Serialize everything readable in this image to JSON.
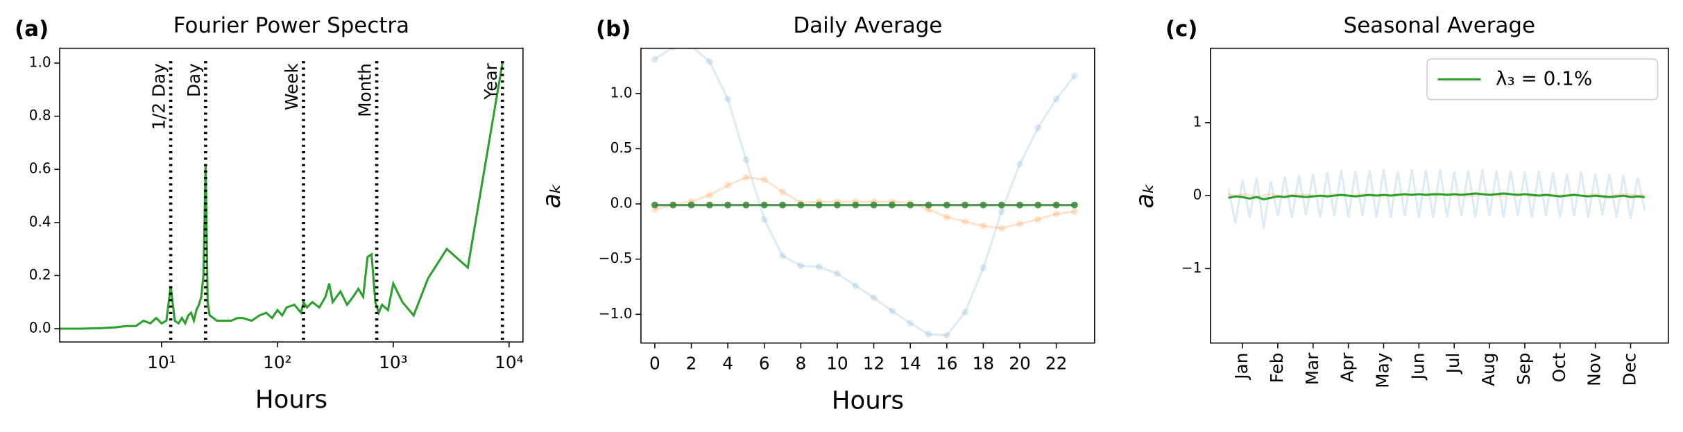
{
  "chart_data": [
    {
      "type": "line",
      "panel_label": "(a)",
      "title": "Fourier Power Spectra",
      "xlabel": "Hours",
      "xscale": "log",
      "xlim": [
        1.32,
        13180
      ],
      "ylim": [
        -0.05,
        1.056
      ],
      "xticks": [
        {
          "value": 10,
          "label": "10¹"
        },
        {
          "value": 100,
          "label": "10²"
        },
        {
          "value": 1000,
          "label": "10³"
        },
        {
          "value": 10000,
          "label": "10⁴"
        }
      ],
      "yticks": [
        {
          "value": 0,
          "label": "0.0"
        },
        0.2,
        0.4,
        0.6,
        0.8,
        {
          "value": 1,
          "label": "1.0"
        }
      ],
      "x": [
        1.3,
        2,
        3,
        4,
        5,
        6,
        7,
        8,
        9,
        10,
        11,
        12,
        13,
        14,
        15,
        16,
        17,
        18,
        19,
        20,
        21,
        22,
        23,
        24,
        25,
        26,
        28,
        30,
        35,
        40,
        45,
        50,
        60,
        70,
        80,
        90,
        100,
        110,
        120,
        140,
        160,
        168,
        180,
        200,
        230,
        260,
        280,
        300,
        350,
        400,
        450,
        500,
        550,
        600,
        650,
        700,
        750,
        800,
        900,
        1000,
        1200,
        1500,
        2000,
        2900,
        4400,
        8760
      ],
      "series": [
        {
          "color": "#2ca02c",
          "opacity": 1,
          "marker": false,
          "values": [
            0,
            0,
            0.002,
            0.005,
            0.01,
            0.01,
            0.03,
            0.02,
            0.04,
            0.02,
            0.03,
            0.16,
            0.03,
            0.02,
            0.04,
            0.02,
            0.05,
            0.06,
            0.03,
            0.07,
            0.09,
            0.12,
            0.2,
            0.62,
            0.1,
            0.05,
            0.04,
            0.03,
            0.03,
            0.03,
            0.04,
            0.04,
            0.03,
            0.05,
            0.06,
            0.04,
            0.07,
            0.05,
            0.08,
            0.09,
            0.06,
            0.1,
            0.08,
            0.1,
            0.08,
            0.12,
            0.17,
            0.1,
            0.14,
            0.09,
            0.12,
            0.15,
            0.12,
            0.27,
            0.28,
            0.1,
            0.06,
            0.09,
            0.07,
            0.17,
            0.1,
            0.05,
            0.19,
            0.3,
            0.23,
            1.0
          ]
        }
      ],
      "vlines": [
        {
          "x": 12,
          "label": "1/2 Day"
        },
        {
          "x": 24,
          "label": "Day"
        },
        {
          "x": 168,
          "label": "Week"
        },
        {
          "x": 720,
          "label": "Month"
        },
        {
          "x": 8760,
          "label": "Year"
        }
      ]
    },
    {
      "type": "line",
      "panel_label": "(b)",
      "title": "Daily Average",
      "xlabel": "Hours",
      "ylabel": "aₖ",
      "xlim": [
        -0.76,
        24.1
      ],
      "ylim": [
        -1.26,
        1.41
      ],
      "xticks": [
        0,
        2,
        4,
        6,
        8,
        10,
        12,
        14,
        16,
        18,
        20,
        22
      ],
      "yticks": [
        {
          "value": -1,
          "label": "−1.0"
        },
        {
          "value": -0.5,
          "label": "−0.5"
        },
        {
          "value": 0,
          "label": "0.0"
        },
        0.5,
        {
          "value": 1,
          "label": "1.0"
        }
      ],
      "x": [
        0,
        1,
        2,
        3,
        4,
        5,
        6,
        7,
        8,
        9,
        10,
        11,
        12,
        13,
        14,
        15,
        16,
        17,
        18,
        19,
        20,
        21,
        22,
        23
      ],
      "series": [
        {
          "color": "#1f77b4",
          "opacity": 0.15,
          "marker": true,
          "values": [
            1.31,
            1.42,
            1.43,
            1.29,
            0.95,
            0.4,
            -0.14,
            -0.47,
            -0.56,
            -0.57,
            -0.63,
            -0.74,
            -0.85,
            -0.97,
            -1.08,
            -1.18,
            -1.19,
            -0.98,
            -0.58,
            -0.07,
            0.36,
            0.69,
            0.95,
            1.16
          ]
        },
        {
          "color": "#ff7f0e",
          "opacity": 0.2,
          "marker": true,
          "values": [
            -0.05,
            -0.01,
            0.02,
            0.08,
            0.17,
            0.24,
            0.22,
            0.11,
            0.01,
            0.02,
            0.02,
            0.02,
            0.02,
            0.02,
            0.01,
            -0.05,
            -0.12,
            -0.16,
            -0.2,
            -0.22,
            -0.18,
            -0.14,
            -0.09,
            -0.07
          ]
        },
        {
          "color": "#3d8b3d",
          "opacity": 0.9,
          "marker": true,
          "values": [
            -0.01,
            -0.01,
            -0.01,
            -0.01,
            -0.01,
            -0.01,
            -0.01,
            -0.01,
            -0.01,
            -0.01,
            -0.01,
            -0.01,
            -0.01,
            -0.01,
            -0.01,
            -0.01,
            -0.01,
            -0.01,
            -0.01,
            -0.01,
            -0.01,
            -0.01,
            -0.01,
            -0.01
          ]
        }
      ]
    },
    {
      "type": "line",
      "panel_label": "(c)",
      "title": "Seasonal Average",
      "ylabel": "aₖ",
      "xlim": [
        -0.91,
        12.07
      ],
      "ylim": [
        -2.02,
        2.02
      ],
      "xtick_rotation": 90,
      "legend": "upper right",
      "xticks": [
        {
          "value": 0,
          "label": "Jan"
        },
        {
          "value": 1,
          "label": "Feb"
        },
        {
          "value": 2,
          "label": "Mar"
        },
        {
          "value": 3,
          "label": "Apr"
        },
        {
          "value": 4,
          "label": "May"
        },
        {
          "value": 5,
          "label": "Jun"
        },
        {
          "value": 6,
          "label": "Jul"
        },
        {
          "value": 7,
          "label": "Aug"
        },
        {
          "value": 8,
          "label": "Sep"
        },
        {
          "value": 9,
          "label": "Oct"
        },
        {
          "value": 10,
          "label": "Nov"
        },
        {
          "value": 11,
          "label": "Dec"
        }
      ],
      "yticks": [
        {
          "value": -1,
          "label": "−1"
        },
        0,
        1
      ],
      "x": [
        -0.4,
        -0.2,
        0,
        0.2,
        0.4,
        0.6,
        0.8,
        1,
        1.2,
        1.4,
        1.6,
        1.8,
        2,
        2.2,
        2.4,
        2.6,
        2.8,
        3,
        3.2,
        3.4,
        3.6,
        3.8,
        4,
        4.2,
        4.4,
        4.6,
        4.8,
        5,
        5.2,
        5.4,
        5.6,
        5.8,
        6,
        6.2,
        6.4,
        6.6,
        6.8,
        7,
        7.2,
        7.4,
        7.6,
        7.8,
        8,
        8.2,
        8.4,
        8.6,
        8.8,
        9,
        9.2,
        9.4,
        9.6,
        9.8,
        10,
        10.2,
        10.4,
        10.6,
        10.8,
        11,
        11.2,
        11.4
      ],
      "series": [
        {
          "color": "#1f77b4",
          "opacity": 0.15,
          "marker": false,
          "values": [
            0.1,
            -0.38,
            0.22,
            -0.3,
            0.25,
            -0.45,
            0.2,
            -0.28,
            0.26,
            -0.3,
            0.28,
            -0.27,
            0.3,
            -0.3,
            0.32,
            -0.28,
            0.35,
            -0.3,
            0.33,
            -0.28,
            0.35,
            -0.3,
            0.36,
            -0.3,
            0.34,
            -0.28,
            0.36,
            -0.3,
            0.35,
            -0.31,
            0.36,
            -0.3,
            0.33,
            -0.28,
            0.35,
            -0.3,
            0.36,
            -0.28,
            0.34,
            -0.3,
            0.35,
            -0.28,
            0.33,
            -0.3,
            0.34,
            -0.28,
            0.32,
            -0.3,
            0.3,
            -0.28,
            0.33,
            -0.3,
            0.3,
            -0.27,
            0.3,
            -0.3,
            0.28,
            -0.32,
            0.25,
            -0.2
          ]
        },
        {
          "color": "#ff7f0e",
          "opacity": 0.2,
          "marker": false,
          "values": [
            0.02,
            -0.01,
            0.02,
            0.01,
            -0.02,
            0.01,
            0.02,
            0,
            -0.01,
            0.01,
            0.02,
            0.01,
            0,
            -0.01,
            0.01,
            0.02,
            0.01,
            0,
            0.01,
            0.02,
            0,
            0.01,
            -0.01,
            0.01,
            0.02,
            0,
            0.01,
            0.02,
            0.01,
            0,
            0.01,
            0.02,
            0,
            0.01,
            -0.01,
            0.01,
            0.02,
            0.01,
            0,
            0.01,
            0.02,
            0,
            0.01,
            -0.01,
            0.01,
            0.02,
            0.01,
            0,
            0.01,
            0.02,
            0,
            0.01,
            0.02,
            0,
            -0.01,
            0.01,
            0.02,
            0.01,
            0,
            0.01
          ]
        },
        {
          "name": "λ₃ = 0.1%",
          "color": "#2ca02c",
          "opacity": 1,
          "marker": false,
          "values": [
            -0.03,
            -0.01,
            -0.02,
            -0.04,
            -0.02,
            -0.05,
            -0.03,
            -0.01,
            -0.02,
            0,
            -0.01,
            -0.02,
            -0.01,
            0,
            -0.01,
            0,
            0.01,
            0,
            -0.01,
            0,
            0.01,
            0,
            0.01,
            0,
            0.01,
            0.02,
            0.01,
            0.02,
            0.01,
            0.02,
            0.02,
            0.01,
            0.02,
            0.01,
            0.02,
            0.03,
            0.02,
            0.01,
            0.02,
            0.03,
            0.02,
            0.01,
            0.02,
            0.01,
            0,
            0.01,
            0,
            -0.01,
            0,
            0.01,
            0,
            -0.01,
            0,
            -0.01,
            -0.02,
            -0.01,
            0,
            -0.02,
            -0.01,
            -0.02
          ]
        }
      ]
    }
  ]
}
